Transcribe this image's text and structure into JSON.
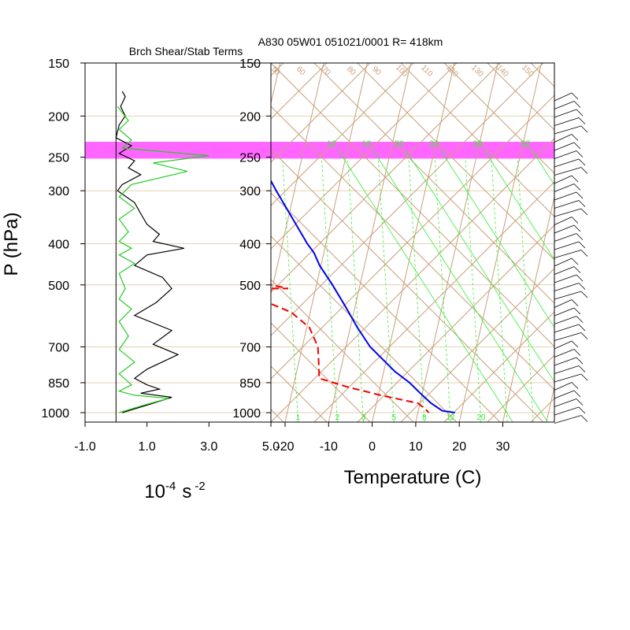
{
  "header": {
    "left_title": "Brch Shear/Stab Terms",
    "right_title": "A830 05W01 051021/0001 R= 418km"
  },
  "colors": {
    "shade": "#ff66ff",
    "gridline": "#e6d2b4",
    "skew": "#c8a07c",
    "mixing": "#33ee33",
    "temperature": "#0000ee",
    "dewpoint": "#ee0000",
    "shear": "#000000",
    "stability": "#22cc22"
  },
  "pressure_levels": [
    150,
    200,
    250,
    300,
    400,
    500,
    700,
    850,
    1000
  ],
  "left_axis_title": "P (hPa)",
  "shaded_band_hpa": [
    230,
    252
  ],
  "chart_data": [
    {
      "type": "line",
      "name": "Brch Shear/Stab Terms",
      "title": "Brch Shear/Stab Terms",
      "xlabel": "10-4 s-2",
      "xlabel_parts": {
        "base": "10",
        "exp1": "-4",
        "unit": "s",
        "exp2": "-2"
      },
      "ylabel": "P (hPa)",
      "xlim": [
        -1.0,
        5.0
      ],
      "xticks": [
        "-1.0",
        "1.0",
        "3.0",
        "5.0"
      ],
      "y_log_pressure": [
        150,
        1000
      ],
      "zero_line": 0,
      "series": [
        {
          "key": "shear",
          "color": "#000000",
          "points": [
            [
              0.2,
              175
            ],
            [
              0.3,
              180
            ],
            [
              0.15,
              190
            ],
            [
              0.3,
              200
            ],
            [
              0.1,
              210
            ],
            [
              0.0,
              225
            ],
            [
              0.5,
              235
            ],
            [
              0.1,
              245
            ],
            [
              0.6,
              255
            ],
            [
              0.4,
              265
            ],
            [
              0.8,
              275
            ],
            [
              0.2,
              290
            ],
            [
              0.05,
              300
            ],
            [
              0.6,
              320
            ],
            [
              0.8,
              340
            ],
            [
              1.0,
              360
            ],
            [
              1.4,
              380
            ],
            [
              1.2,
              395
            ],
            [
              2.2,
              410
            ],
            [
              1.0,
              425
            ],
            [
              0.6,
              450
            ],
            [
              1.5,
              480
            ],
            [
              1.8,
              510
            ],
            [
              1.3,
              550
            ],
            [
              0.6,
              590
            ],
            [
              1.8,
              640
            ],
            [
              1.2,
              690
            ],
            [
              2.0,
              730
            ],
            [
              1.0,
              790
            ],
            [
              0.6,
              830
            ],
            [
              1.0,
              860
            ],
            [
              1.4,
              880
            ],
            [
              0.8,
              900
            ],
            [
              1.8,
              920
            ],
            [
              1.2,
              950
            ],
            [
              0.2,
              1000
            ]
          ]
        },
        {
          "key": "stability",
          "color": "#22cc22",
          "points": [
            [
              0.05,
              190
            ],
            [
              0.4,
              205
            ],
            [
              0.1,
              215
            ],
            [
              0.5,
              228
            ],
            [
              0.2,
              238
            ],
            [
              3.0,
              248
            ],
            [
              1.2,
              258
            ],
            [
              2.3,
              270
            ],
            [
              0.5,
              290
            ],
            [
              0.1,
              310
            ],
            [
              0.6,
              330
            ],
            [
              0.1,
              350
            ],
            [
              0.4,
              375
            ],
            [
              0.1,
              395
            ],
            [
              0.5,
              410
            ],
            [
              0.1,
              425
            ],
            [
              0.6,
              445
            ],
            [
              0.1,
              470
            ],
            [
              0.3,
              510
            ],
            [
              0.1,
              540
            ],
            [
              0.5,
              570
            ],
            [
              0.1,
              610
            ],
            [
              0.4,
              660
            ],
            [
              0.1,
              710
            ],
            [
              0.6,
              760
            ],
            [
              0.1,
              810
            ],
            [
              0.5,
              860
            ],
            [
              0.1,
              890
            ],
            [
              0.6,
              910
            ],
            [
              1.7,
              925
            ],
            [
              0.9,
              960
            ],
            [
              0.1,
              1000
            ]
          ]
        }
      ]
    },
    {
      "type": "line",
      "name": "Skew-T sounding",
      "title": "A830 05W01 051021/0001 R= 418km",
      "xlabel": "Temperature (C)",
      "ylabel": "P (hPa)",
      "xlim": [
        -25,
        40
      ],
      "xticks": [
        -20,
        -10,
        0,
        10,
        20,
        30
      ],
      "y_log_pressure": [
        150,
        1000
      ],
      "mixing_ratio_labels": [
        {
          "label": "12",
          "temp_c": -23.5,
          "p": 240
        },
        {
          "label": "16",
          "temp_c": -15.5,
          "p": 240
        },
        {
          "label": "20",
          "temp_c": -8.0,
          "p": 240
        },
        {
          "label": "24",
          "temp_c": 0.0,
          "p": 240
        },
        {
          "label": "28",
          "temp_c": 10.0,
          "p": 240
        },
        {
          "label": "32",
          "temp_c": 21.0,
          "p": 240
        }
      ],
      "bottom_labels": [
        {
          "label": "1",
          "temp_c": -17,
          "p": 1000
        },
        {
          "label": "2",
          "temp_c": -8,
          "p": 1000
        },
        {
          "label": "3",
          "temp_c": -2,
          "p": 1000
        },
        {
          "label": "5",
          "temp_c": 5,
          "p": 1000
        },
        {
          "label": "8",
          "temp_c": 12,
          "p": 1000
        },
        {
          "label": "12",
          "temp_c": 18,
          "p": 1000
        },
        {
          "label": "20",
          "temp_c": 25,
          "p": 1000
        }
      ],
      "top_labels": [
        "50",
        "60",
        "70",
        "80",
        "90",
        "100",
        "110",
        "120",
        "130",
        "140",
        "150"
      ],
      "series": [
        {
          "key": "temperature",
          "name": "Temperature",
          "color": "#0000ee",
          "dashed": false,
          "points": [
            [
              -54,
              170
            ],
            [
              -48,
              200
            ],
            [
              -44,
              230
            ],
            [
              -40,
              250
            ],
            [
              -34,
              300
            ],
            [
              -24,
              400
            ],
            [
              -22,
              420
            ],
            [
              -20,
              450
            ],
            [
              -16,
              500
            ],
            [
              -12,
              560
            ],
            [
              -8,
              630
            ],
            [
              -4,
              700
            ],
            [
              3,
              800
            ],
            [
              7,
              850
            ],
            [
              10,
              900
            ],
            [
              13,
              950
            ],
            [
              16,
              990
            ],
            [
              19,
              1000
            ]
          ]
        },
        {
          "key": "dewpoint",
          "name": "Dewpoint",
          "color": "#ee0000",
          "dashed": true,
          "points": [
            [
              -61,
              200
            ],
            [
              -58,
              220
            ],
            [
              -54,
              238
            ],
            [
              -52,
              250
            ],
            [
              -56,
              265
            ],
            [
              -61,
              275
            ],
            [
              -63,
              300
            ],
            [
              -67,
              335
            ],
            [
              -55,
              370
            ],
            [
              -44,
              395
            ],
            [
              -41,
              410
            ],
            [
              -40,
              430
            ],
            [
              -36,
              460
            ],
            [
              -30,
              500
            ],
            [
              -26,
              510
            ],
            [
              -35,
              510
            ],
            [
              -40,
              515
            ],
            [
              -32,
              540
            ],
            [
              -24,
              580
            ],
            [
              -19,
              630
            ],
            [
              -16,
              700
            ],
            [
              -15,
              760
            ],
            [
              -14,
              830
            ],
            [
              -7,
              870
            ],
            [
              1,
              910
            ],
            [
              10,
              950
            ],
            [
              12,
              980
            ],
            [
              13,
              1000
            ]
          ]
        }
      ]
    }
  ]
}
